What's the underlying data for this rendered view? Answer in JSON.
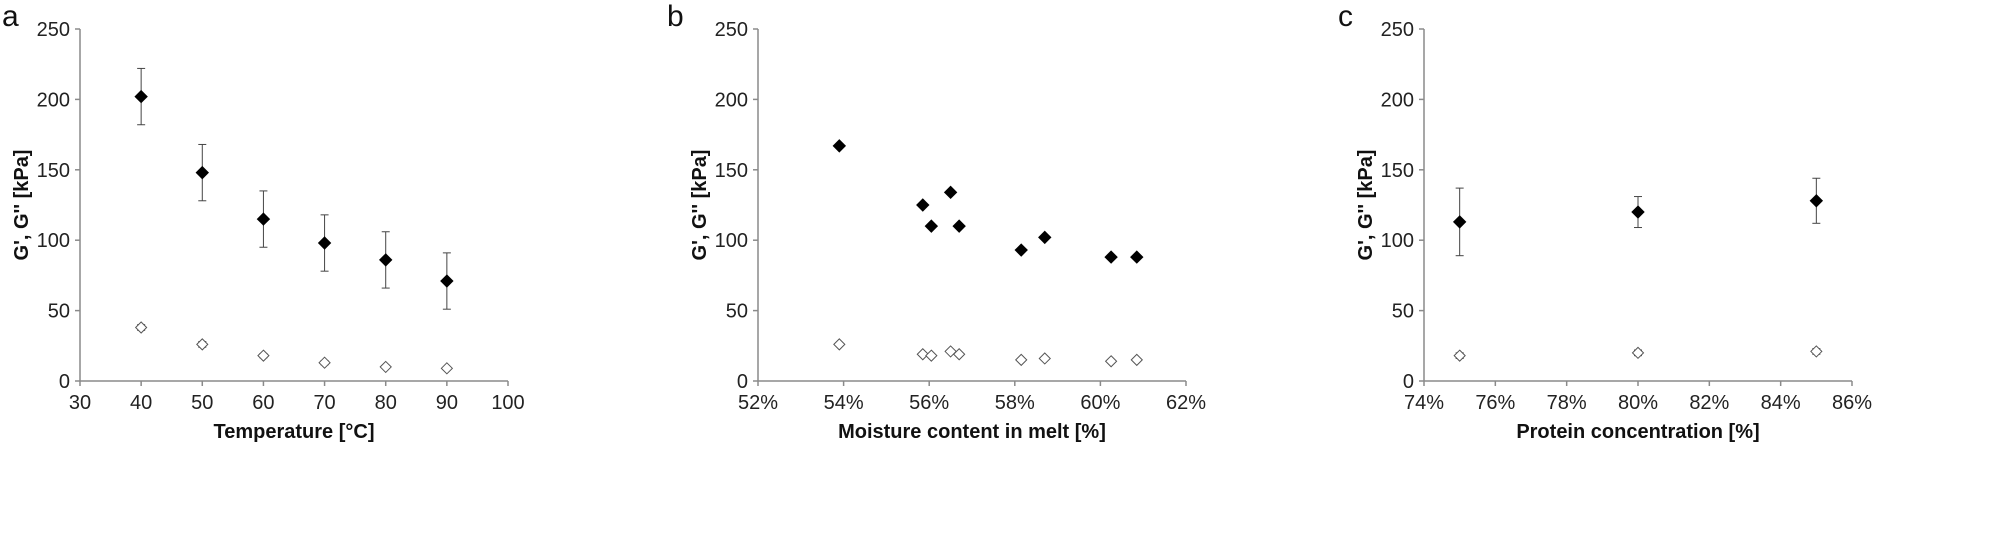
{
  "chart_data": [
    {
      "type": "scatter",
      "panel_label": "a",
      "xlabel": "Temperature [°C]",
      "ylabel": "G', G'' [kPa]",
      "xlim": [
        30,
        100
      ],
      "ylim": [
        0,
        250
      ],
      "xticks": [
        30,
        40,
        50,
        60,
        70,
        80,
        90,
        100
      ],
      "xtick_labels": [
        "30",
        "40",
        "50",
        "60",
        "70",
        "80",
        "90",
        "100"
      ],
      "yticks": [
        0,
        50,
        100,
        150,
        200,
        250
      ],
      "ytick_labels": [
        "0",
        "50",
        "100",
        "150",
        "200",
        "250"
      ],
      "grid": false,
      "series": [
        {
          "marker": "filled-diamond",
          "color": "#000000",
          "x": [
            40,
            50,
            60,
            70,
            80,
            90
          ],
          "y": [
            202,
            148,
            115,
            98,
            86,
            71
          ],
          "err": [
            20,
            20,
            20,
            20,
            20,
            20
          ]
        },
        {
          "marker": "open-diamond",
          "color": "#555555",
          "x": [
            40,
            50,
            60,
            70,
            80,
            90
          ],
          "y": [
            38,
            26,
            18,
            13,
            10,
            9
          ],
          "err": [
            2,
            2,
            1.5,
            1.5,
            1,
            1
          ]
        }
      ]
    },
    {
      "type": "scatter",
      "panel_label": "b",
      "xlabel": "Moisture content in melt [%]",
      "ylabel": "G', G'' [kPa]",
      "xlim": [
        52,
        62
      ],
      "ylim": [
        0,
        250
      ],
      "xticks": [
        52,
        54,
        56,
        58,
        60,
        62
      ],
      "xtick_labels": [
        "52%",
        "54%",
        "56%",
        "58%",
        "60%",
        "62%"
      ],
      "yticks": [
        0,
        50,
        100,
        150,
        200,
        250
      ],
      "ytick_labels": [
        "0",
        "50",
        "100",
        "150",
        "200",
        "250"
      ],
      "grid": false,
      "series": [
        {
          "marker": "filled-diamond",
          "color": "#000000",
          "x": [
            53.9,
            55.85,
            56.05,
            56.5,
            56.7,
            58.15,
            58.7,
            60.25,
            60.85
          ],
          "y": [
            167,
            125,
            110,
            134,
            110,
            93,
            102,
            88,
            88
          ],
          "err": null
        },
        {
          "marker": "open-diamond",
          "color": "#555555",
          "x": [
            53.9,
            55.85,
            56.05,
            56.5,
            56.7,
            58.15,
            58.7,
            60.25,
            60.85
          ],
          "y": [
            26,
            19,
            18,
            21,
            19,
            15,
            16,
            14,
            15
          ],
          "err": null
        }
      ]
    },
    {
      "type": "scatter",
      "panel_label": "c",
      "xlabel": "Protein concentration [%]",
      "ylabel": "G', G'' [kPa]",
      "xlim": [
        74,
        86
      ],
      "ylim": [
        0,
        250
      ],
      "xticks": [
        74,
        76,
        78,
        80,
        82,
        84,
        86
      ],
      "xtick_labels": [
        "74%",
        "76%",
        "78%",
        "80%",
        "82%",
        "84%",
        "86%"
      ],
      "yticks": [
        0,
        50,
        100,
        150,
        200,
        250
      ],
      "ytick_labels": [
        "0",
        "50",
        "100",
        "150",
        "200",
        "250"
      ],
      "grid": false,
      "series": [
        {
          "marker": "filled-diamond",
          "color": "#000000",
          "x": [
            75,
            80,
            85
          ],
          "y": [
            113,
            120,
            128
          ],
          "err": [
            24,
            11,
            16
          ]
        },
        {
          "marker": "open-diamond",
          "color": "#555555",
          "x": [
            75,
            80,
            85
          ],
          "y": [
            18,
            20,
            21
          ],
          "err": [
            2,
            2,
            2
          ]
        }
      ]
    }
  ]
}
